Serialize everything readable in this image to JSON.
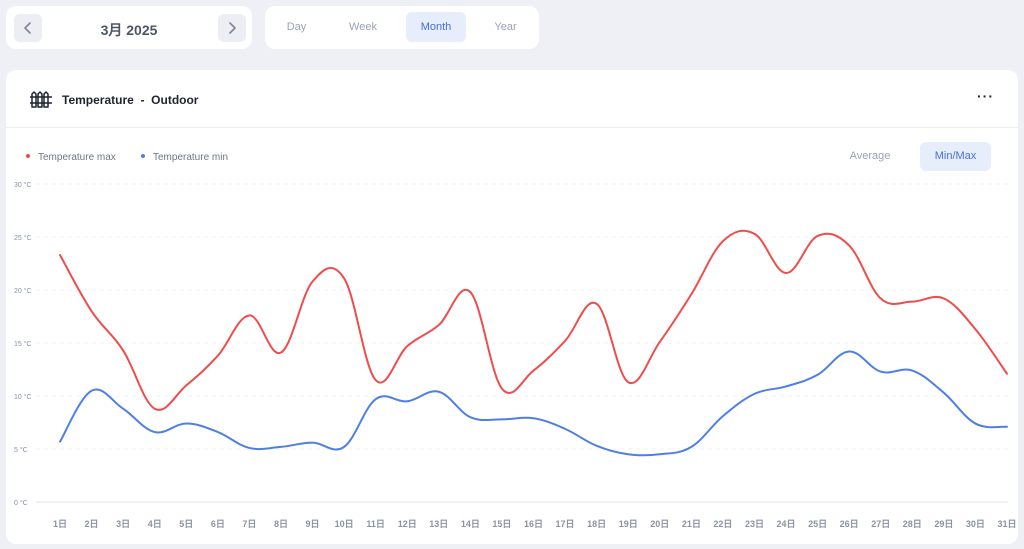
{
  "date_nav": {
    "label": "3月 2025",
    "prev_icon": "chevron-left-icon",
    "next_icon": "chevron-right-icon"
  },
  "periods": [
    "Day",
    "Week",
    "Month",
    "Year"
  ],
  "active_period": "Month",
  "header": {
    "title": "Temperature",
    "separator": "-",
    "location": "Outdoor",
    "icon": "fence-icon",
    "more_label": "···"
  },
  "modes": [
    "Average",
    "Min/Max"
  ],
  "active_mode": "Min/Max",
  "colors": {
    "max": "#ef4d4d",
    "min": "#4f7fe6",
    "accent": "#4a6fd4"
  },
  "chart_data": {
    "type": "line",
    "x": [
      "1日",
      "2日",
      "3日",
      "4日",
      "5日",
      "6日",
      "7日",
      "8日",
      "9日",
      "10日",
      "11日",
      "12日",
      "13日",
      "14日",
      "15日",
      "16日",
      "17日",
      "18日",
      "19日",
      "20日",
      "21日",
      "22日",
      "23日",
      "24日",
      "25日",
      "26日",
      "27日",
      "28日",
      "29日",
      "30日",
      "31日"
    ],
    "y_ticks": [
      "0 °C",
      "5 °C",
      "10 °C",
      "15 °C",
      "20 °C",
      "25 °C",
      "30 °C"
    ],
    "ylim": [
      0,
      30
    ],
    "grid": true,
    "legend": "top-left",
    "series": [
      {
        "name": "Temperature max",
        "color": "#ef4d4d",
        "values": [
          23.3,
          18.0,
          14.3,
          8.8,
          11.0,
          13.8,
          17.6,
          14.1,
          20.8,
          21.1,
          11.5,
          14.7,
          16.7,
          19.8,
          10.7,
          12.4,
          15.2,
          18.7,
          11.3,
          15.1,
          19.6,
          24.6,
          25.3,
          21.6,
          25.1,
          24.2,
          19.2,
          18.9,
          19.2,
          16.3,
          12.1
        ]
      },
      {
        "name": "Temperature min",
        "color": "#4f7fe6",
        "values": [
          5.7,
          10.5,
          8.8,
          6.6,
          7.4,
          6.6,
          5.1,
          5.2,
          5.6,
          5.2,
          9.7,
          9.5,
          10.4,
          8.0,
          7.8,
          7.9,
          6.9,
          5.3,
          4.5,
          4.5,
          5.2,
          8.1,
          10.2,
          10.9,
          12.0,
          14.2,
          12.3,
          12.4,
          10.3,
          7.4,
          7.1
        ]
      }
    ]
  }
}
